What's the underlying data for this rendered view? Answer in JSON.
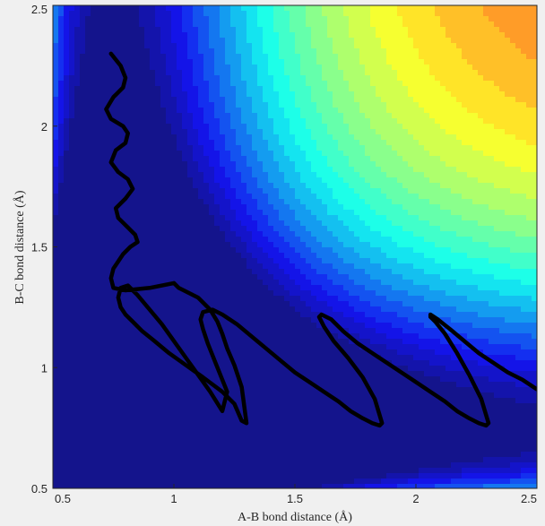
{
  "chart_data": {
    "type": "contour",
    "title": "",
    "xlabel": "A-B bond distance (Å)",
    "ylabel": "B-C bond distance (Å)",
    "xlim": [
      0.5,
      2.5
    ],
    "ylim": [
      0.5,
      2.5
    ],
    "xticks": [
      "0.5",
      "1",
      "1.5",
      "2",
      "2.5"
    ],
    "xtick_values": [
      0.5,
      1,
      1.5,
      2,
      2.5
    ],
    "yticks": [
      "0.5",
      "1",
      "1.5",
      "2",
      "2.5"
    ],
    "ytick_values": [
      0.5,
      1,
      1.5,
      2,
      2.5
    ],
    "colormap": "jet",
    "grid": false,
    "series": [
      {
        "type": "trajectory",
        "color": "#000000",
        "x": [
          0.74,
          0.78,
          0.8,
          0.79,
          0.75,
          0.72,
          0.74,
          0.79,
          0.81,
          0.8,
          0.76,
          0.74,
          0.77,
          0.81,
          0.83,
          0.8,
          0.76,
          0.77,
          0.81,
          0.84,
          0.85,
          0.82,
          0.79,
          0.77,
          0.75,
          0.74,
          0.75,
          0.8,
          0.9,
          1.0,
          1.0,
          1.02,
          1.1,
          1.15,
          1.18,
          1.2,
          1.22,
          1.25,
          1.28,
          1.3,
          1.28,
          1.25,
          1.2,
          1.12,
          1.05,
          0.98,
          0.92,
          0.87,
          0.83,
          0.8,
          0.78,
          0.77,
          0.78,
          0.81,
          0.85,
          0.9,
          0.95,
          1.0,
          1.05,
          1.1,
          1.15,
          1.2,
          1.22,
          1.18,
          1.14,
          1.12,
          1.11,
          1.12,
          1.16,
          1.2,
          1.26,
          1.32,
          1.38,
          1.44,
          1.5,
          1.56,
          1.62,
          1.68,
          1.73,
          1.78,
          1.82,
          1.85,
          1.86,
          1.83,
          1.78,
          1.72,
          1.66,
          1.62,
          1.6,
          1.61,
          1.65,
          1.7,
          1.76,
          1.82,
          1.88,
          1.94,
          2.0,
          2.06,
          2.12,
          2.17,
          2.22,
          2.26,
          2.29,
          2.3,
          2.27,
          2.22,
          2.17,
          2.12,
          2.08,
          2.06,
          2.06,
          2.09,
          2.14,
          2.2,
          2.26,
          2.32,
          2.38,
          2.44,
          2.5
        ],
        "y": [
          2.3,
          2.25,
          2.2,
          2.16,
          2.12,
          2.07,
          2.03,
          2.0,
          1.97,
          1.93,
          1.9,
          1.85,
          1.81,
          1.78,
          1.74,
          1.7,
          1.66,
          1.62,
          1.58,
          1.55,
          1.52,
          1.5,
          1.47,
          1.44,
          1.41,
          1.37,
          1.33,
          1.32,
          1.33,
          1.35,
          1.35,
          1.33,
          1.29,
          1.24,
          1.19,
          1.14,
          1.08,
          1.01,
          0.92,
          0.77,
          0.78,
          0.85,
          0.9,
          0.96,
          1.01,
          1.06,
          1.11,
          1.15,
          1.19,
          1.22,
          1.25,
          1.29,
          1.33,
          1.34,
          1.3,
          1.24,
          1.18,
          1.11,
          1.04,
          0.97,
          0.9,
          0.82,
          0.9,
          1.0,
          1.1,
          1.16,
          1.2,
          1.23,
          1.24,
          1.22,
          1.18,
          1.13,
          1.08,
          1.03,
          0.98,
          0.94,
          0.9,
          0.86,
          0.82,
          0.79,
          0.77,
          0.76,
          0.77,
          0.87,
          0.96,
          1.04,
          1.11,
          1.17,
          1.21,
          1.22,
          1.2,
          1.15,
          1.1,
          1.06,
          1.02,
          0.98,
          0.94,
          0.9,
          0.86,
          0.82,
          0.79,
          0.77,
          0.76,
          0.77,
          0.87,
          0.97,
          1.06,
          1.14,
          1.19,
          1.21,
          1.22,
          1.2,
          1.16,
          1.11,
          1.06,
          1.02,
          0.98,
          0.95,
          0.91
        ]
      }
    ]
  }
}
